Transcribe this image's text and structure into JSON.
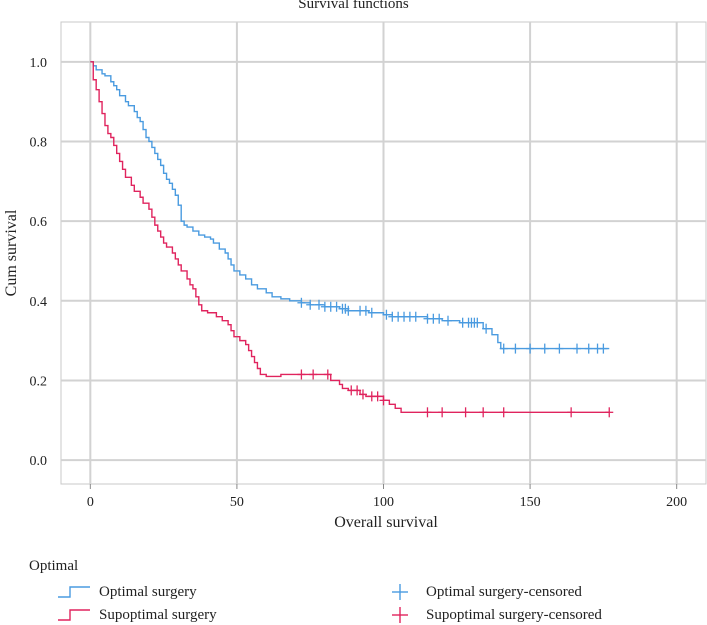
{
  "chart_data": {
    "type": "line",
    "title": "Survival functions",
    "xlabel": "Overall survival",
    "ylabel": "Cum survival",
    "xlim": [
      -10,
      210
    ],
    "ylim": [
      -0.06,
      1.1
    ],
    "xticks": [
      0,
      50,
      100,
      150,
      200
    ],
    "yticks": [
      0.0,
      0.2,
      0.4,
      0.6,
      0.8,
      1.0
    ],
    "xtick_labels": [
      "0",
      "50",
      "100",
      "150",
      "200"
    ],
    "ytick_labels": [
      "0.0",
      "0.2",
      "0.4",
      "0.6",
      "0.8",
      "1.0"
    ],
    "grid": true,
    "legend_title": "Optimal",
    "series": [
      {
        "name": "Optimal surgery",
        "censored_name": "Optimal surgery-censored",
        "color": "#4a9be0",
        "steps": [
          [
            0,
            1.0
          ],
          [
            1,
            0.99
          ],
          [
            2,
            0.98
          ],
          [
            4,
            0.97
          ],
          [
            5,
            0.965
          ],
          [
            7,
            0.95
          ],
          [
            8,
            0.94
          ],
          [
            9,
            0.93
          ],
          [
            10,
            0.915
          ],
          [
            12,
            0.9
          ],
          [
            13,
            0.89
          ],
          [
            15,
            0.875
          ],
          [
            16,
            0.86
          ],
          [
            17,
            0.85
          ],
          [
            18,
            0.83
          ],
          [
            19,
            0.81
          ],
          [
            20,
            0.8
          ],
          [
            21,
            0.785
          ],
          [
            22,
            0.77
          ],
          [
            23,
            0.755
          ],
          [
            24,
            0.74
          ],
          [
            25,
            0.72
          ],
          [
            26,
            0.705
          ],
          [
            27,
            0.695
          ],
          [
            28,
            0.68
          ],
          [
            29,
            0.665
          ],
          [
            30,
            0.64
          ],
          [
            31,
            0.6
          ],
          [
            32,
            0.59
          ],
          [
            33,
            0.585
          ],
          [
            35,
            0.575
          ],
          [
            37,
            0.565
          ],
          [
            39,
            0.56
          ],
          [
            41,
            0.555
          ],
          [
            42,
            0.545
          ],
          [
            44,
            0.53
          ],
          [
            46,
            0.52
          ],
          [
            47,
            0.505
          ],
          [
            48,
            0.49
          ],
          [
            49,
            0.475
          ],
          [
            51,
            0.465
          ],
          [
            53,
            0.455
          ],
          [
            55,
            0.44
          ],
          [
            57,
            0.43
          ],
          [
            60,
            0.42
          ],
          [
            62,
            0.41
          ],
          [
            65,
            0.405
          ],
          [
            68,
            0.4
          ],
          [
            72,
            0.395
          ],
          [
            75,
            0.39
          ],
          [
            80,
            0.385
          ],
          [
            85,
            0.38
          ],
          [
            88,
            0.375
          ],
          [
            95,
            0.37
          ],
          [
            100,
            0.365
          ],
          [
            103,
            0.36
          ],
          [
            115,
            0.355
          ],
          [
            120,
            0.35
          ],
          [
            126,
            0.345
          ],
          [
            134,
            0.33
          ],
          [
            137,
            0.315
          ],
          [
            139,
            0.295
          ],
          [
            140,
            0.28
          ],
          [
            177,
            0.28
          ]
        ],
        "end": 177,
        "censored": [
          72,
          75,
          78,
          80,
          82,
          84,
          86,
          87,
          88,
          92,
          94,
          96,
          101,
          103,
          105,
          107,
          109,
          111,
          115,
          117,
          119,
          122,
          127,
          129,
          130,
          131,
          132,
          135,
          141,
          145,
          150,
          155,
          160,
          166,
          170,
          173,
          175
        ]
      },
      {
        "name": "Supoptimal surgery",
        "censored_name": "Supoptimal surgery-censored",
        "color": "#e0245e",
        "steps": [
          [
            0,
            1.0
          ],
          [
            1,
            0.955
          ],
          [
            2,
            0.93
          ],
          [
            3,
            0.9
          ],
          [
            4,
            0.87
          ],
          [
            5,
            0.84
          ],
          [
            6,
            0.82
          ],
          [
            7,
            0.81
          ],
          [
            8,
            0.79
          ],
          [
            9,
            0.77
          ],
          [
            10,
            0.75
          ],
          [
            11,
            0.73
          ],
          [
            12,
            0.71
          ],
          [
            14,
            0.69
          ],
          [
            15,
            0.675
          ],
          [
            17,
            0.66
          ],
          [
            18,
            0.645
          ],
          [
            20,
            0.63
          ],
          [
            21,
            0.61
          ],
          [
            22,
            0.59
          ],
          [
            23,
            0.575
          ],
          [
            24,
            0.56
          ],
          [
            25,
            0.545
          ],
          [
            26,
            0.535
          ],
          [
            28,
            0.52
          ],
          [
            29,
            0.505
          ],
          [
            30,
            0.49
          ],
          [
            31,
            0.475
          ],
          [
            33,
            0.455
          ],
          [
            34,
            0.44
          ],
          [
            35,
            0.43
          ],
          [
            36,
            0.41
          ],
          [
            37,
            0.39
          ],
          [
            38,
            0.375
          ],
          [
            40,
            0.37
          ],
          [
            43,
            0.36
          ],
          [
            45,
            0.35
          ],
          [
            47,
            0.34
          ],
          [
            48,
            0.325
          ],
          [
            49,
            0.31
          ],
          [
            51,
            0.3
          ],
          [
            53,
            0.29
          ],
          [
            54,
            0.275
          ],
          [
            55,
            0.26
          ],
          [
            56,
            0.245
          ],
          [
            57,
            0.23
          ],
          [
            58,
            0.215
          ],
          [
            60,
            0.21
          ],
          [
            65,
            0.215
          ],
          [
            82,
            0.2
          ],
          [
            85,
            0.19
          ],
          [
            86,
            0.18
          ],
          [
            88,
            0.175
          ],
          [
            92,
            0.165
          ],
          [
            94,
            0.16
          ],
          [
            100,
            0.15
          ],
          [
            102,
            0.14
          ],
          [
            104,
            0.13
          ],
          [
            106,
            0.12
          ],
          [
            177,
            0.12
          ]
        ],
        "end": 177,
        "censored": [
          72,
          76,
          81,
          89,
          91,
          93,
          96,
          98,
          100,
          115,
          120,
          128,
          134,
          141,
          164,
          177
        ]
      }
    ]
  }
}
